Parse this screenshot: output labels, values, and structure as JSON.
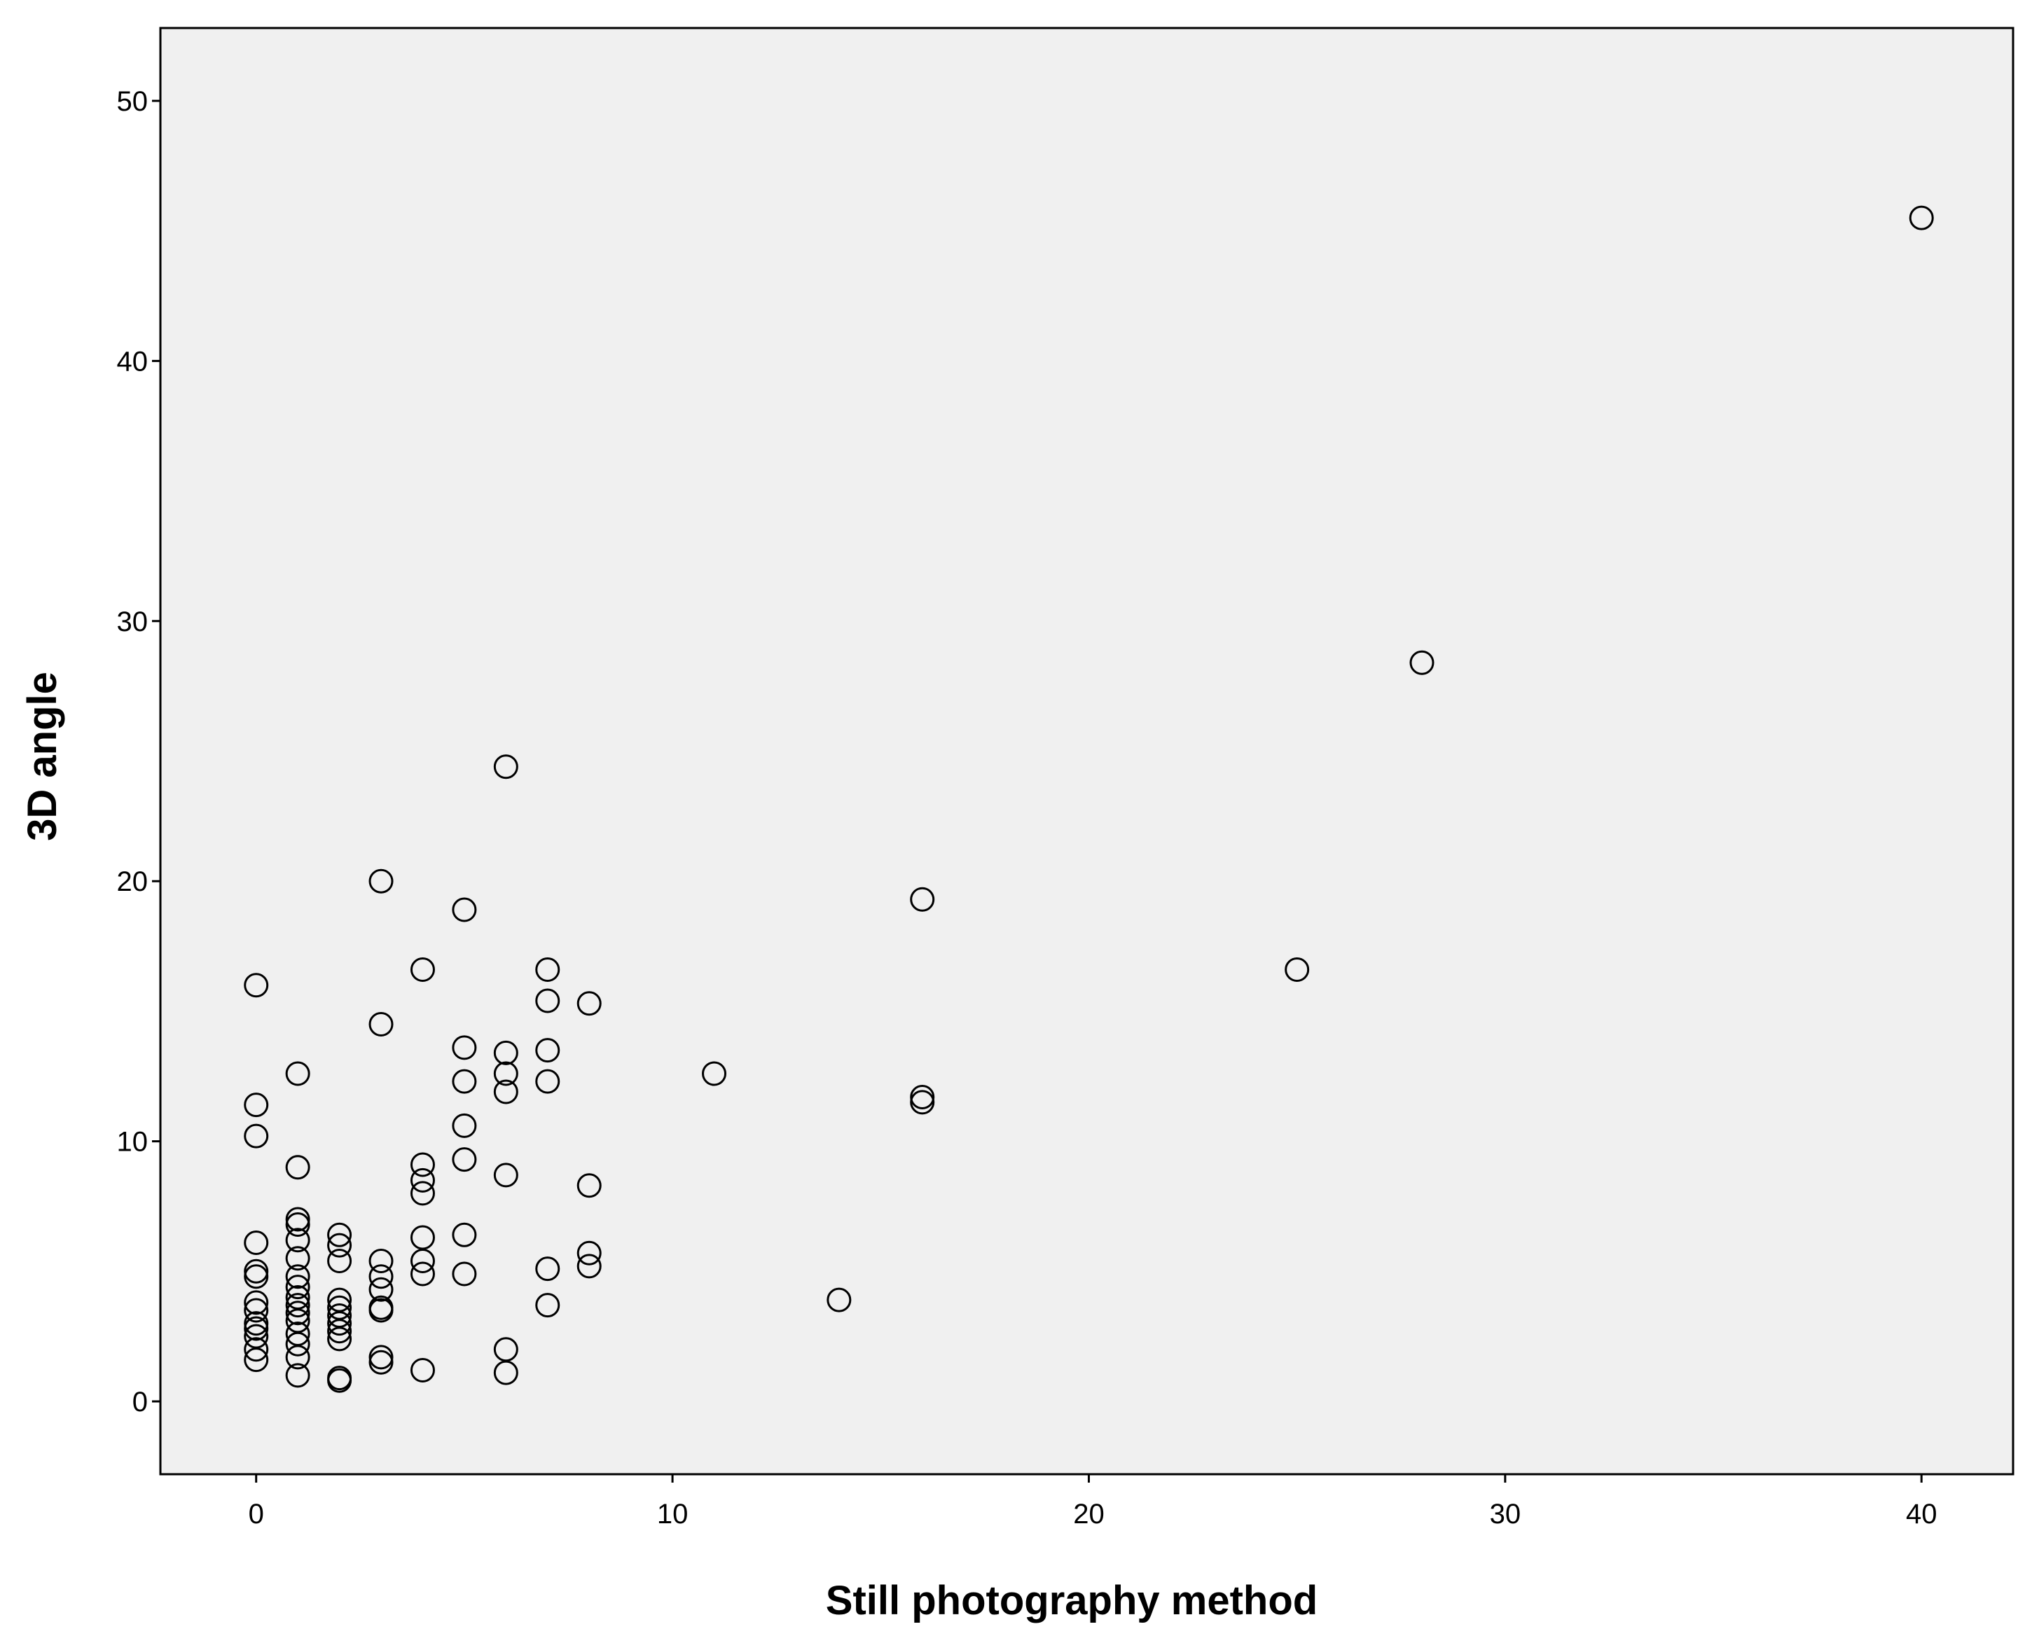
{
  "chart_data": {
    "type": "scatter",
    "title": "",
    "xlabel": "Still photography method",
    "ylabel": "3D angle",
    "xlim": [
      -2.3,
      42.2
    ],
    "ylim": [
      -2.8,
      52.8
    ],
    "xticks": [
      0,
      10,
      20,
      30,
      40
    ],
    "yticks": [
      0,
      10,
      20,
      30,
      40,
      50
    ],
    "xtick_labels": [
      "0",
      "10",
      "20",
      "30",
      "40"
    ],
    "ytick_labels": [
      "0",
      "10",
      "20",
      "30",
      "40",
      "50"
    ],
    "grid": false,
    "legend": "none",
    "background_color": "#f0f0f0",
    "marker": "open-circle",
    "points": [
      {
        "x": 0,
        "y": 16.0
      },
      {
        "x": 0,
        "y": 11.4
      },
      {
        "x": 0,
        "y": 10.2
      },
      {
        "x": 0,
        "y": 6.1
      },
      {
        "x": 0,
        "y": 5.0
      },
      {
        "x": 0,
        "y": 4.8
      },
      {
        "x": 0,
        "y": 3.8
      },
      {
        "x": 0,
        "y": 3.5
      },
      {
        "x": 0,
        "y": 3.0
      },
      {
        "x": 0,
        "y": 2.8
      },
      {
        "x": 0,
        "y": 2.5
      },
      {
        "x": 0,
        "y": 2.0
      },
      {
        "x": 0,
        "y": 1.6
      },
      {
        "x": 1,
        "y": 12.6
      },
      {
        "x": 1,
        "y": 9.0
      },
      {
        "x": 1,
        "y": 7.0
      },
      {
        "x": 1,
        "y": 6.8
      },
      {
        "x": 1,
        "y": 6.2
      },
      {
        "x": 1,
        "y": 5.5
      },
      {
        "x": 1,
        "y": 4.8
      },
      {
        "x": 1,
        "y": 4.4
      },
      {
        "x": 1,
        "y": 4.0
      },
      {
        "x": 1,
        "y": 3.7
      },
      {
        "x": 1,
        "y": 3.4
      },
      {
        "x": 1,
        "y": 3.1
      },
      {
        "x": 1,
        "y": 2.6
      },
      {
        "x": 1,
        "y": 2.2
      },
      {
        "x": 1,
        "y": 1.7
      },
      {
        "x": 1,
        "y": 1.0
      },
      {
        "x": 2,
        "y": 6.4
      },
      {
        "x": 2,
        "y": 6.0
      },
      {
        "x": 2,
        "y": 5.4
      },
      {
        "x": 2,
        "y": 3.9
      },
      {
        "x": 2,
        "y": 3.6
      },
      {
        "x": 2,
        "y": 3.3
      },
      {
        "x": 2,
        "y": 3.0
      },
      {
        "x": 2,
        "y": 2.7
      },
      {
        "x": 2,
        "y": 2.4
      },
      {
        "x": 2,
        "y": 0.9
      },
      {
        "x": 2,
        "y": 0.8
      },
      {
        "x": 3,
        "y": 20.0
      },
      {
        "x": 3,
        "y": 14.5
      },
      {
        "x": 3,
        "y": 5.4
      },
      {
        "x": 3,
        "y": 4.8
      },
      {
        "x": 3,
        "y": 4.3
      },
      {
        "x": 3,
        "y": 3.6
      },
      {
        "x": 3,
        "y": 3.5
      },
      {
        "x": 3,
        "y": 1.7
      },
      {
        "x": 3,
        "y": 1.5
      },
      {
        "x": 4,
        "y": 16.6
      },
      {
        "x": 4,
        "y": 9.1
      },
      {
        "x": 4,
        "y": 8.5
      },
      {
        "x": 4,
        "y": 8.0
      },
      {
        "x": 4,
        "y": 6.3
      },
      {
        "x": 4,
        "y": 5.4
      },
      {
        "x": 4,
        "y": 4.9
      },
      {
        "x": 4,
        "y": 1.2
      },
      {
        "x": 5,
        "y": 18.9
      },
      {
        "x": 5,
        "y": 13.6
      },
      {
        "x": 5,
        "y": 12.3
      },
      {
        "x": 5,
        "y": 10.6
      },
      {
        "x": 5,
        "y": 9.3
      },
      {
        "x": 5,
        "y": 6.4
      },
      {
        "x": 5,
        "y": 4.9
      },
      {
        "x": 6,
        "y": 24.4
      },
      {
        "x": 6,
        "y": 13.4
      },
      {
        "x": 6,
        "y": 12.6
      },
      {
        "x": 6,
        "y": 11.9
      },
      {
        "x": 6,
        "y": 8.7
      },
      {
        "x": 6,
        "y": 2.0
      },
      {
        "x": 6,
        "y": 1.1
      },
      {
        "x": 7,
        "y": 16.6
      },
      {
        "x": 7,
        "y": 15.4
      },
      {
        "x": 7,
        "y": 13.5
      },
      {
        "x": 7,
        "y": 12.3
      },
      {
        "x": 7,
        "y": 5.1
      },
      {
        "x": 7,
        "y": 3.7
      },
      {
        "x": 8,
        "y": 15.3
      },
      {
        "x": 8,
        "y": 8.3
      },
      {
        "x": 8,
        "y": 5.7
      },
      {
        "x": 8,
        "y": 5.2
      },
      {
        "x": 11,
        "y": 12.6
      },
      {
        "x": 14,
        "y": 3.9
      },
      {
        "x": 16,
        "y": 19.3
      },
      {
        "x": 16,
        "y": 11.7
      },
      {
        "x": 16,
        "y": 11.5
      },
      {
        "x": 25,
        "y": 16.6
      },
      {
        "x": 28,
        "y": 28.4
      },
      {
        "x": 40,
        "y": 45.5
      }
    ]
  }
}
